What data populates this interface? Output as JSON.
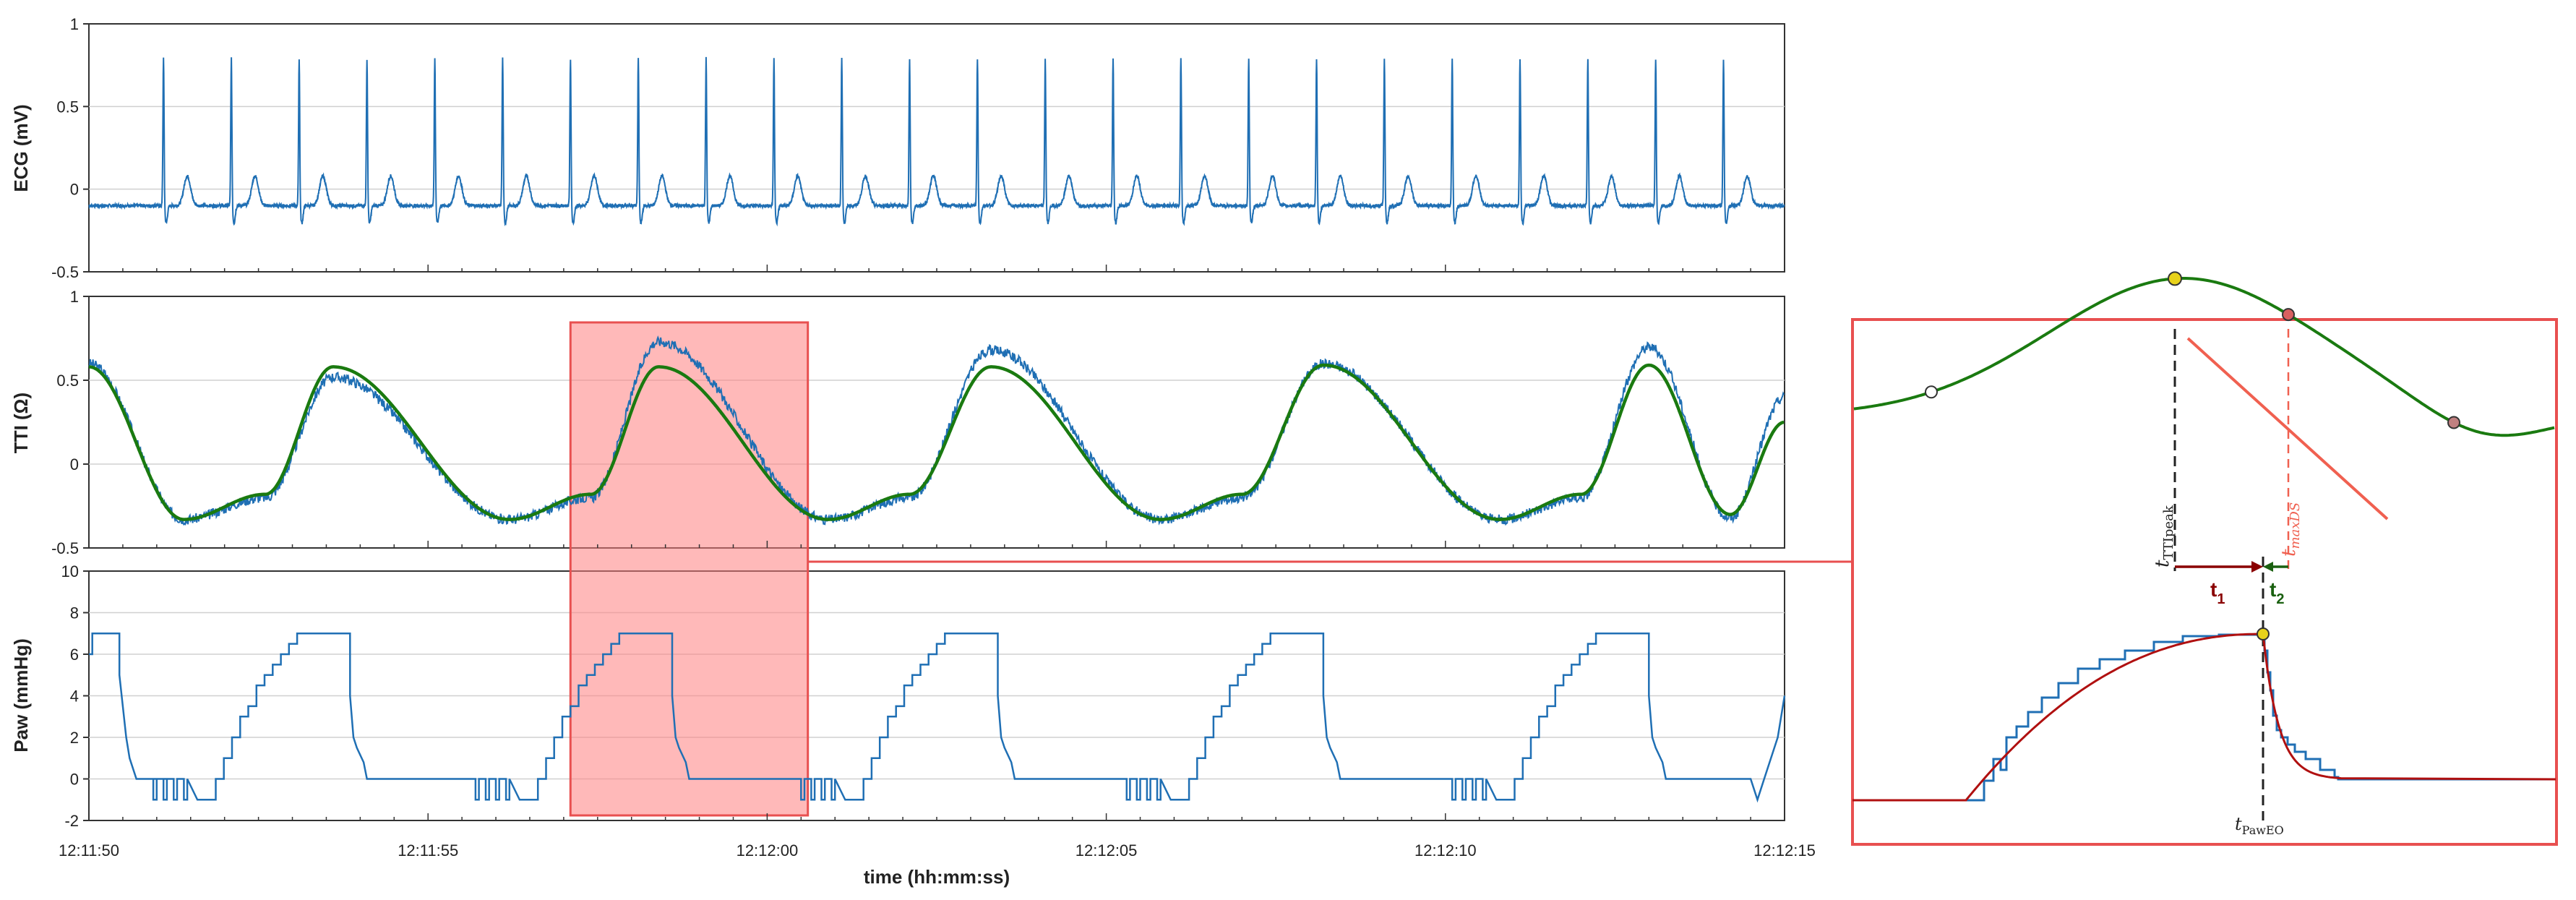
{
  "colors": {
    "signal": "#1f6fb4",
    "fit": "#1a7a10",
    "highlight_fill": "#ff8080",
    "highlight_edge": "#e85050",
    "paw_fit": "#b01010",
    "t1_arrow": "#8a0000",
    "t2_arrow": "#1a6010",
    "tangent": "#f06050",
    "grid": "#d0d0d0"
  },
  "chart_data": [
    {
      "type": "line",
      "ylabel": "ECG (mV)",
      "ylim": [
        -0.5,
        1
      ],
      "yticks": [
        "1",
        "0.5",
        "0",
        "-0.5"
      ],
      "grid": "horizontal",
      "series": [
        {
          "r_peak_times_s": [
            1.1,
            2.1,
            3.1,
            4.1,
            5.1,
            6.1,
            7.1,
            8.1,
            9.1,
            10.1,
            11.1,
            12.1,
            13.1,
            14.1,
            15.1,
            16.1,
            17.1,
            18.1,
            19.1,
            20.1,
            21.1,
            22.1,
            23.1,
            24.1
          ],
          "r_peak_mV": 0.9,
          "q_s_min_mV": -0.25,
          "t_wave_mV": 0.1,
          "baseline_mV": -0.1
        }
      ]
    },
    {
      "type": "line",
      "ylabel": "TTI (Ω)",
      "ylim": [
        -0.5,
        1
      ],
      "yticks": [
        "1",
        "0.5",
        "0",
        "-0.5"
      ],
      "grid": "horizontal",
      "breath_peak_times_s": [
        3.6,
        8.4,
        13.3,
        18.2,
        23.0
      ],
      "breath_trough_times_s": [
        1.4,
        6.2,
        10.9,
        15.8,
        20.8
      ],
      "series": [
        {
          "role": "raw",
          "peaks": [
            0.52,
            0.73,
            0.68,
            0.6,
            0.7
          ],
          "trough": -0.33
        },
        {
          "role": "fit",
          "peaks": [
            0.58,
            0.58,
            0.58,
            0.59,
            0.59
          ],
          "trough": -0.33
        }
      ]
    },
    {
      "type": "line",
      "ylabel": "Paw (mmHg)",
      "ylim": [
        -2,
        10
      ],
      "yticks": [
        "10",
        "8",
        "6",
        "4",
        "2",
        "0",
        "-2"
      ],
      "grid": "horizontal",
      "breath_start_times_s": [
        1.75,
        6.5,
        11.3,
        16.1,
        20.9
      ],
      "plateau_mmHg": 7,
      "baseline_mmHg": 0,
      "dip_mmHg": -1
    }
  ],
  "xaxis": {
    "label": "time (hh:mm:ss)",
    "range_s": [
      0,
      25
    ],
    "ticks": [
      {
        "t": 0,
        "label": "12:11:50"
      },
      {
        "t": 5,
        "label": "12:11:55"
      },
      {
        "t": 10,
        "label": "12:12:00"
      },
      {
        "t": 15,
        "label": "12:12:05"
      },
      {
        "t": 20,
        "label": "12:12:10"
      },
      {
        "t": 25,
        "label": "12:12:15"
      }
    ]
  },
  "highlight": {
    "t_start_s": 7.1,
    "t_end_s": 10.6
  },
  "inset": {
    "labels": {
      "t_tti_peak_main": "t",
      "t_tti_peak_sub": "TTIpeak",
      "t_max_ds_main": "t",
      "t_max_ds_sub": "maxDS",
      "t1_main": "t",
      "t1_sub": "1",
      "t2_main": "t",
      "t2_sub": "2",
      "t_paw_eo_main": "t",
      "t_paw_eo_sub": "PawEO"
    }
  }
}
